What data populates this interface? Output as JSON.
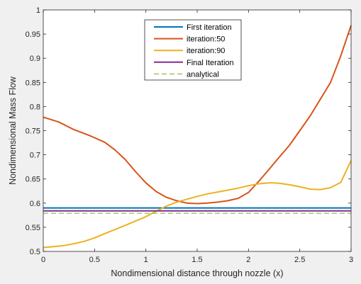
{
  "chart_data": {
    "type": "line",
    "title": "",
    "xlabel": "Nondimensional distance through nozzle (x)",
    "ylabel": "Nondimensional Mass Flow",
    "xlim": [
      0,
      3
    ],
    "ylim": [
      0.5,
      1
    ],
    "xticks": [
      0,
      0.5,
      1,
      1.5,
      2,
      2.5,
      3
    ],
    "xtick_labels": [
      "0",
      "0.5",
      "1",
      "1.5",
      "2",
      "2.5",
      "3"
    ],
    "yticks": [
      0.5,
      0.55,
      0.6,
      0.65,
      0.7,
      0.75,
      0.8,
      0.85,
      0.9,
      0.95,
      1
    ],
    "ytick_labels": [
      "0.5",
      "0.55",
      "0.6",
      "0.65",
      "0.7",
      "0.75",
      "0.8",
      "0.85",
      "0.9",
      "0.95",
      "1"
    ],
    "grid": false,
    "legend_position": "top-center",
    "series": [
      {
        "name": "First iteration",
        "color": "#0072bd",
        "style": "solid",
        "x": [
          0,
          3
        ],
        "y": [
          0.59,
          0.59
        ]
      },
      {
        "name": "iteration:50",
        "color": "#d95319",
        "style": "solid",
        "x": [
          0,
          0.15,
          0.3,
          0.45,
          0.6,
          0.7,
          0.8,
          0.9,
          1.0,
          1.1,
          1.2,
          1.3,
          1.4,
          1.5,
          1.6,
          1.7,
          1.8,
          1.9,
          2.0,
          2.1,
          2.2,
          2.3,
          2.4,
          2.5,
          2.6,
          2.7,
          2.8,
          2.9,
          3.0
        ],
        "y": [
          0.778,
          0.768,
          0.752,
          0.74,
          0.726,
          0.71,
          0.69,
          0.665,
          0.642,
          0.624,
          0.612,
          0.605,
          0.6,
          0.599,
          0.6,
          0.602,
          0.605,
          0.61,
          0.622,
          0.645,
          0.67,
          0.695,
          0.72,
          0.75,
          0.78,
          0.815,
          0.85,
          0.905,
          0.968
        ]
      },
      {
        "name": "iteration:90",
        "color": "#edb120",
        "style": "solid",
        "x": [
          0,
          0.1,
          0.2,
          0.3,
          0.4,
          0.5,
          0.6,
          0.8,
          1.0,
          1.1,
          1.2,
          1.3,
          1.4,
          1.5,
          1.6,
          1.7,
          1.8,
          1.9,
          2.0,
          2.1,
          2.2,
          2.25,
          2.3,
          2.4,
          2.5,
          2.6,
          2.7,
          2.8,
          2.9,
          3.0
        ],
        "y": [
          0.508,
          0.51,
          0.512,
          0.516,
          0.521,
          0.528,
          0.537,
          0.554,
          0.572,
          0.583,
          0.594,
          0.602,
          0.608,
          0.614,
          0.619,
          0.623,
          0.627,
          0.631,
          0.636,
          0.64,
          0.642,
          0.642,
          0.641,
          0.638,
          0.634,
          0.629,
          0.628,
          0.632,
          0.643,
          0.688
        ]
      },
      {
        "name": "Final Iteration",
        "color": "#7e2f8e",
        "style": "solid",
        "x": [
          0,
          3
        ],
        "y": [
          0.584,
          0.584
        ]
      },
      {
        "name": "analytical",
        "color": "#77ac30",
        "style": "dashed",
        "x": [
          0,
          3
        ],
        "y": [
          0.579,
          0.579
        ]
      }
    ]
  }
}
